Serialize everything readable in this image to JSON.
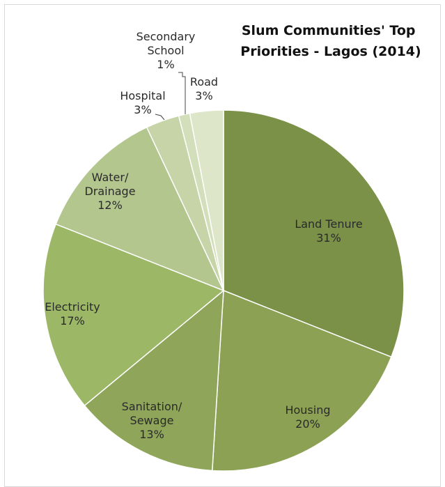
{
  "chart_data": {
    "type": "pie",
    "title_lines": [
      "Slum Communities' Top",
      "Priorities - Lagos (2014)"
    ],
    "start_angle_deg": 0,
    "direction": "clockwise",
    "slices": [
      {
        "label_lines": [
          "Land Tenure",
          "31%"
        ],
        "value": 31,
        "color": "#7a9147"
      },
      {
        "label_lines": [
          "Housing",
          "20%"
        ],
        "value": 20,
        "color": "#8ca153"
      },
      {
        "label_lines": [
          "Sanitation/",
          "Sewage",
          "13%"
        ],
        "value": 13,
        "color": "#8fa65a"
      },
      {
        "label_lines": [
          "Electricity",
          "17%"
        ],
        "value": 17,
        "color": "#9cb866"
      },
      {
        "label_lines": [
          "Water/",
          "Drainage",
          "12%"
        ],
        "value": 12,
        "color": "#b2c68e"
      },
      {
        "label_lines": [
          "Hospital",
          "3%"
        ],
        "value": 3,
        "color": "#c6d4a8"
      },
      {
        "label_lines": [
          "Secondary",
          "School",
          "1%"
        ],
        "value": 1,
        "color": "#d3dfba"
      },
      {
        "label_lines": [
          "Road",
          "3%"
        ],
        "value": 3,
        "color": "#dde6c9"
      }
    ]
  }
}
